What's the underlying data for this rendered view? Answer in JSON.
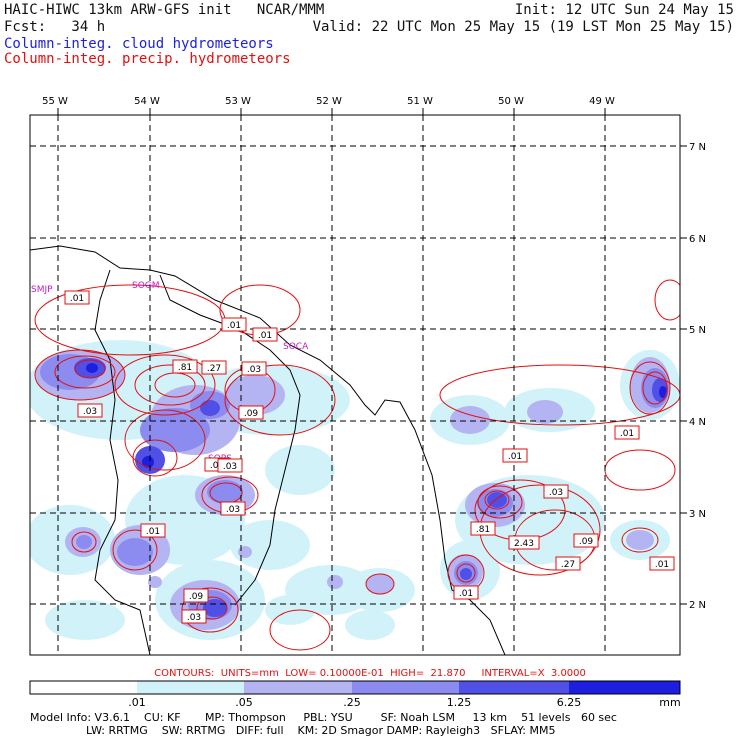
{
  "header": {
    "line1_left": "HAIC-HIWC 13km ARW-GFS init   NCAR/MMM",
    "line1_right": "Init: 12 UTC Sun 24 May 15",
    "line2_left": "Fcst:   34 h",
    "line2_right": "Valid: 22 UTC Mon 25 May 15 (19 LST Mon 25 May 15)",
    "field1": "Column-integ. cloud hydrometeors",
    "field2": "Column-integ. precip. hydrometeors"
  },
  "map": {
    "lon_labels": [
      "55 W",
      "54 W",
      "53 W",
      "52 W",
      "51 W",
      "50 W",
      "49 W"
    ],
    "lat_labels": [
      "7 N",
      "6 N",
      "5 N",
      "4 N",
      "3 N",
      "2 N"
    ],
    "stations": [
      "SMJP",
      "SOGM",
      "SOCA",
      "SOPS"
    ],
    "contour_labels": [
      ".01",
      ".01",
      ".01",
      ".81",
      ".27",
      ".03",
      ".03",
      ".09",
      ".01",
      ".03",
      ".01",
      ".09",
      ".03",
      ".01",
      ".03",
      ".01",
      ".03",
      ".81",
      "2.43",
      ".09",
      ".27",
      ".01",
      ".01",
      ".03",
      ".01"
    ]
  },
  "colors": {
    "cloud_shades": [
      "#ffffff",
      "#d2f2fa",
      "#b4b4f2",
      "#8c8cf0",
      "#5050e6",
      "#1e1ee0"
    ],
    "precip_contour": "#e01010",
    "station_text": "#c020c0",
    "title_blue": "#1e22d8"
  },
  "footer": {
    "contours": "CONTOURS:  UNITS=mm  LOW= 0.10000E-01  HIGH=  21.870     INTERVAL=X  3.0000",
    "colorbar_labels": [
      ".01",
      ".05",
      ".25",
      "1.25",
      "6.25",
      "mm"
    ],
    "model_info_1": "Model Info: V3.6.1    CU: KF       MP: Thompson     PBL: YSU        SF: Noah LSM     13 km    51 levels   60 sec",
    "model_info_2": "                LW: RRTMG    SW: RRTMG   DIFF: full    KM: 2D Smagor DAMP: Rayleigh3   SFLAY: MM5"
  }
}
